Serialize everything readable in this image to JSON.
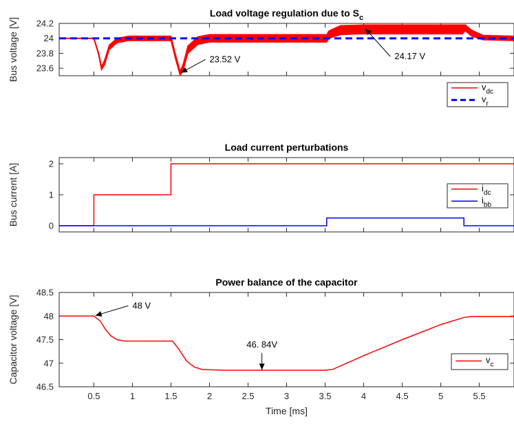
{
  "chart_data": [
    {
      "type": "line",
      "title": "Load voltage regulation due to S",
      "title_sub": "c",
      "xlabel": "",
      "ylabel": "Bus voltage [V]",
      "xlim": [
        0.05,
        5.95
      ],
      "ylim": [
        23.5,
        24.2
      ],
      "yticks": [
        23.6,
        23.8,
        24,
        24.2
      ],
      "ytick_labels": [
        "23.6",
        "23.8",
        "24",
        "24.2"
      ],
      "grid": false,
      "legend_position": "right",
      "series": [
        {
          "name": "v",
          "sub": "dc",
          "color": "#ff0000",
          "style": "solid",
          "band": true,
          "x": [
            0.05,
            0.5,
            0.56,
            0.6,
            0.64,
            0.7,
            0.8,
            0.95,
            1.5,
            1.56,
            1.62,
            1.66,
            1.72,
            1.85,
            2.0,
            2.3,
            2.7,
            3.2,
            3.52,
            3.55,
            3.7,
            4.0,
            4.5,
            5.0,
            5.28,
            5.32,
            5.4,
            5.55,
            5.95
          ],
          "y": [
            24.0,
            24.0,
            23.8,
            23.6,
            23.68,
            23.88,
            23.97,
            24.0,
            24.0,
            23.75,
            23.53,
            23.62,
            23.85,
            23.97,
            24.0,
            24.0,
            24.0,
            24.0,
            24.0,
            24.05,
            24.11,
            24.12,
            24.12,
            24.12,
            24.12,
            24.14,
            24.07,
            24.01,
            24.0
          ],
          "band_amplitude": [
            0.0,
            0.0,
            0.01,
            0.02,
            0.03,
            0.03,
            0.03,
            0.03,
            0.03,
            0.03,
            0.03,
            0.04,
            0.05,
            0.05,
            0.05,
            0.05,
            0.05,
            0.05,
            0.05,
            0.05,
            0.06,
            0.06,
            0.06,
            0.06,
            0.06,
            0.04,
            0.04,
            0.03,
            0.03
          ]
        },
        {
          "name": "v",
          "sub": "r",
          "color": "#0000ff",
          "style": "dashed",
          "x": [
            0.05,
            5.95
          ],
          "y": [
            24,
            24
          ]
        }
      ],
      "annotations": [
        {
          "text": "23.52 V",
          "text_x": 2.0,
          "text_y": 23.68,
          "arrow_x": 1.63,
          "arrow_y": 23.54
        },
        {
          "text": "24.17 V",
          "text_x": 4.4,
          "text_y": 23.72,
          "arrow_x": 4.02,
          "arrow_y": 24.13
        }
      ]
    },
    {
      "type": "line",
      "title": "Load current perturbations",
      "xlabel": "",
      "ylabel": "Bus current [A]",
      "xlim": [
        0.05,
        5.95
      ],
      "ylim": [
        -0.2,
        2.2
      ],
      "yticks": [
        0,
        1,
        2
      ],
      "ytick_labels": [
        "0",
        "1",
        "2"
      ],
      "grid": false,
      "legend_position": "right",
      "series": [
        {
          "name": "i",
          "sub": "dc",
          "color": "#ff0000",
          "style": "solid",
          "x": [
            0.05,
            0.5,
            0.5,
            1.5,
            1.5,
            5.95
          ],
          "y": [
            0,
            0,
            1,
            1,
            2,
            2
          ]
        },
        {
          "name": "i",
          "sub": "bb",
          "color": "#0000ff",
          "style": "solid",
          "x": [
            0.05,
            3.52,
            3.52,
            5.3,
            5.3,
            5.95
          ],
          "y": [
            0,
            0,
            0.25,
            0.25,
            0,
            0
          ]
        }
      ]
    },
    {
      "type": "line",
      "title": "Power balance of the capacitor",
      "xlabel": "Time [ms]",
      "ylabel": "Capacitor voltage [V]",
      "xlim": [
        0.05,
        5.95
      ],
      "ylim": [
        46.5,
        48.5
      ],
      "xticks": [
        0.5,
        1,
        1.5,
        2,
        2.5,
        3,
        3.5,
        4,
        4.5,
        5,
        5.5
      ],
      "xtick_labels": [
        "0.5",
        "1",
        "1.5",
        "2",
        "2.5",
        "3",
        "3.5",
        "4",
        "4.5",
        "5",
        "5.5"
      ],
      "yticks": [
        46.5,
        47,
        47.5,
        48,
        48.5
      ],
      "ytick_labels": [
        "46.5",
        "47",
        "47.5",
        "48",
        "48.5"
      ],
      "grid": false,
      "legend_position": "right",
      "series": [
        {
          "name": "v",
          "sub": "c",
          "color": "#ff0000",
          "style": "solid",
          "x": [
            0.05,
            0.5,
            0.58,
            0.65,
            0.72,
            0.8,
            0.9,
            1.0,
            1.52,
            1.6,
            1.7,
            1.8,
            1.9,
            2.0,
            2.2,
            3.5,
            3.6,
            4.0,
            4.5,
            5.0,
            5.3,
            5.4,
            5.95
          ],
          "y": [
            48.0,
            48.0,
            47.9,
            47.72,
            47.58,
            47.5,
            47.47,
            47.47,
            47.47,
            47.3,
            47.05,
            46.92,
            46.87,
            46.86,
            46.85,
            46.85,
            46.87,
            47.16,
            47.5,
            47.82,
            47.97,
            47.99,
            47.99
          ]
        }
      ],
      "annotations": [
        {
          "text": "48 V",
          "text_x": 1.0,
          "text_y": 48.16,
          "arrow_x": 0.52,
          "arrow_y": 48.01
        },
        {
          "text": "46. 84V",
          "text_x": 2.42,
          "text_y": 47.33,
          "arrow_x": 2.68,
          "arrow_y": 46.86
        }
      ]
    }
  ]
}
